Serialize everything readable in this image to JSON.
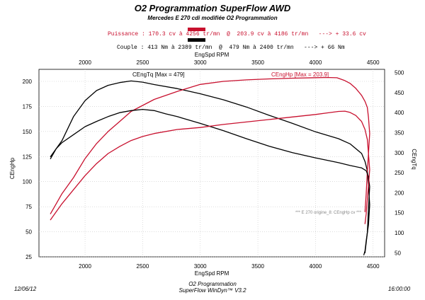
{
  "header": {
    "title": "O2 Programmation SuperFlow AWD",
    "subtitle": "Mercedes E 270 cdi modifiée O2 Programmation",
    "power_line": "Puissance : 170.3 cv à 4256 tr/mn  @  203.9 cv à 4186 tr/mn   ---> + 33.6 cv",
    "torque_line": "Couple : 413 Nm à 2389 tr/mn  @  479 Nm à 2400 tr/mn   ---> + 66 Nm"
  },
  "colors": {
    "red": "#c8102e",
    "black": "#000000"
  },
  "footer": {
    "date": "12/06/12",
    "brand": "O2 Programmation",
    "software": "SuperFlow WinDyn™ V3.2",
    "time": "16:00:00"
  },
  "chart_data": {
    "type": "line",
    "xlabel_top": "EngSpd RPM",
    "xlabel_bottom": "EngSpd RPM",
    "ylabel_left": "CEngHp",
    "ylabel_right": "CEngTq",
    "xlim": [
      1600,
      4600
    ],
    "ylim_left": [
      25,
      212
    ],
    "ylim_right": [
      40,
      508
    ],
    "x_ticks": [
      2000,
      2500,
      3000,
      3500,
      4000,
      4500
    ],
    "y_left_ticks": [
      25,
      50,
      75,
      100,
      125,
      150,
      175,
      200
    ],
    "y_right_ticks": [
      50,
      100,
      150,
      200,
      250,
      300,
      350,
      400,
      450,
      500
    ],
    "grid": true,
    "annotations": {
      "tq_max": "CEngTq [Max = 479]",
      "hp_max": "CEngHp [Max = 203.9]",
      "note": "*** E 270 origine_8: CEngHp  cv    ***"
    },
    "series": [
      {
        "axis": "right",
        "color": "#000000",
        "x": [
          1700,
          1800,
          1900,
          2000,
          2100,
          2200,
          2300,
          2400,
          2500,
          2600,
          2800,
          3000,
          3200,
          3400,
          3600,
          3800,
          4000,
          4200,
          4300,
          4400,
          4430,
          4450,
          4460,
          4470,
          4460,
          4440,
          4430,
          4420
        ],
        "y": [
          290,
          330,
          390,
          430,
          455,
          468,
          475,
          479,
          476,
          470,
          460,
          447,
          432,
          414,
          393,
          373,
          352,
          335,
          322,
          298,
          278,
          255,
          220,
          170,
          120,
          80,
          55,
          45
        ]
      },
      {
        "axis": "left",
        "color": "#c8102e",
        "x": [
          1700,
          1750,
          1800,
          1900,
          2000,
          2100,
          2200,
          2300,
          2400,
          2500,
          2600,
          2800,
          3000,
          3200,
          3400,
          3600,
          3800,
          4000,
          4100,
          4186,
          4250,
          4300,
          4350,
          4400,
          4430,
          4450,
          4460,
          4470,
          4460,
          4450,
          4440,
          4430
        ],
        "y": [
          68,
          78,
          88,
          104,
          123,
          138,
          150,
          160,
          170,
          176,
          182,
          190,
          197,
          200,
          201.5,
          202.5,
          203.2,
          203.7,
          203.9,
          203.6,
          201,
          198,
          193,
          186,
          180,
          174,
          164,
          148,
          128,
          110,
          88,
          70
        ]
      },
      {
        "axis": "right",
        "color": "#000000",
        "x": [
          1700,
          1750,
          1800,
          1900,
          2000,
          2100,
          2200,
          2300,
          2400,
          2500,
          2600,
          2700,
          2800,
          3000,
          3200,
          3400,
          3600,
          3800,
          4000,
          4200,
          4300,
          4400,
          4440,
          4460,
          4470,
          4460,
          4450,
          4430
        ],
        "y": [
          285,
          310,
          325,
          345,
          365,
          378,
          390,
          400,
          405,
          408,
          405,
          397,
          390,
          373,
          355,
          335,
          316,
          300,
          287,
          275,
          268,
          262,
          255,
          240,
          215,
          160,
          100,
          50
        ]
      },
      {
        "axis": "left",
        "color": "#c8102e",
        "x": [
          1700,
          1750,
          1800,
          1900,
          2000,
          2100,
          2200,
          2300,
          2400,
          2500,
          2600,
          2800,
          3000,
          3200,
          3400,
          3600,
          3800,
          4000,
          4100,
          4200,
          4256,
          4300,
          4350,
          4400,
          4430,
          4450,
          4460,
          4470,
          4460,
          4450,
          4440,
          4430
        ],
        "y": [
          62,
          70,
          78,
          92,
          106,
          118,
          128,
          135,
          141,
          145,
          148,
          152,
          154,
          157,
          159.5,
          162,
          164.5,
          167,
          168.5,
          170,
          170.3,
          169,
          166,
          160,
          152,
          142,
          128,
          112,
          96,
          82,
          68,
          58
        ]
      }
    ]
  }
}
